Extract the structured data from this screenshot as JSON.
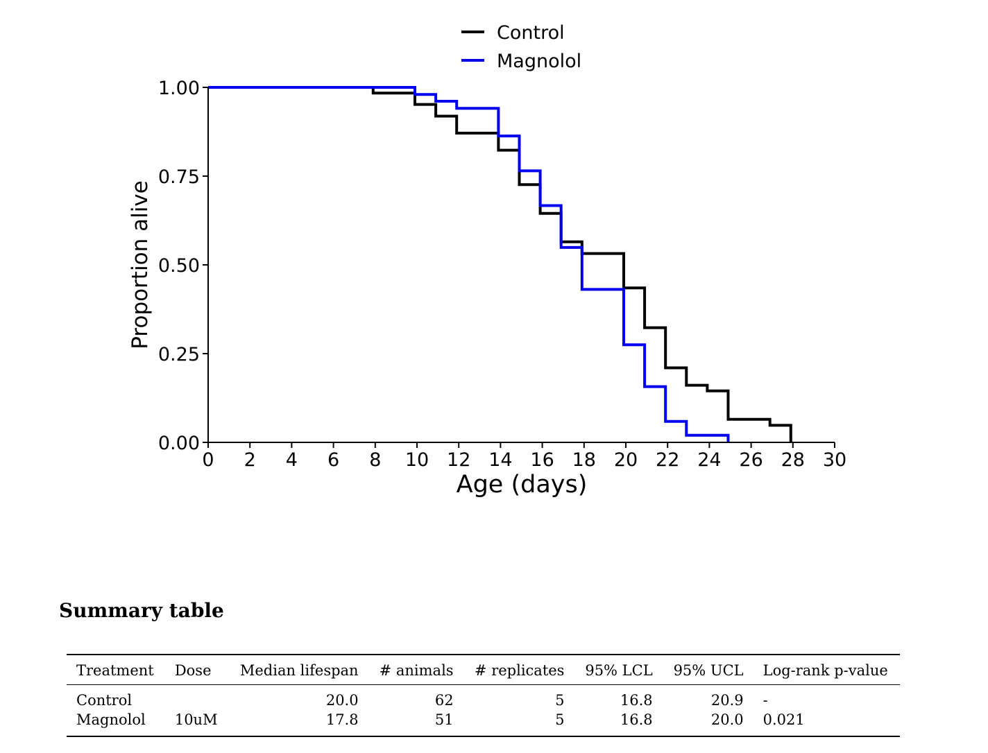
{
  "chart_data": {
    "type": "line",
    "step": true,
    "xlabel": "Age (days)",
    "ylabel": "Proportion alive",
    "xlim": [
      0,
      30
    ],
    "ylim": [
      0,
      1
    ],
    "xticks": [
      0,
      2,
      4,
      6,
      8,
      10,
      12,
      14,
      16,
      18,
      20,
      22,
      24,
      26,
      28,
      30
    ],
    "yticks": [
      "0.00",
      "0.25",
      "0.50",
      "0.75",
      "1.00"
    ],
    "legend": "top-center",
    "series": [
      {
        "name": "Control",
        "color": "#000000",
        "x": [
          0,
          7.9,
          9.9,
          10.9,
          11.9,
          13.9,
          14.9,
          15.9,
          16.9,
          17.9,
          19.9,
          20.9,
          21.9,
          22.9,
          23.9,
          24.9,
          26.9,
          27.9
        ],
        "y": [
          1.0,
          0.984,
          0.952,
          0.919,
          0.871,
          0.823,
          0.726,
          0.645,
          0.565,
          0.532,
          0.435,
          0.323,
          0.21,
          0.161,
          0.145,
          0.065,
          0.048,
          0.0
        ]
      },
      {
        "name": "Magnolol",
        "color": "#0000ee",
        "x": [
          0,
          9.9,
          10.9,
          11.9,
          13.9,
          14.9,
          15.9,
          16.9,
          17.9,
          19.9,
          20.9,
          21.9,
          22.9,
          24.9
        ],
        "y": [
          1.0,
          0.98,
          0.961,
          0.941,
          0.863,
          0.765,
          0.667,
          0.549,
          0.431,
          0.275,
          0.157,
          0.059,
          0.02,
          0.0
        ]
      }
    ]
  },
  "summary": {
    "title": "Summary table",
    "columns": [
      "Treatment",
      "Dose",
      "Median lifespan",
      "# animals",
      "# replicates",
      "95% LCL",
      "95% UCL",
      "Log-rank p-value"
    ],
    "rows": [
      [
        "Control",
        "",
        "20.0",
        "62",
        "5",
        "16.8",
        "20.9",
        "-"
      ],
      [
        "Magnolol",
        "10uM",
        "17.8",
        "51",
        "5",
        "16.8",
        "20.0",
        "0.021"
      ]
    ]
  }
}
